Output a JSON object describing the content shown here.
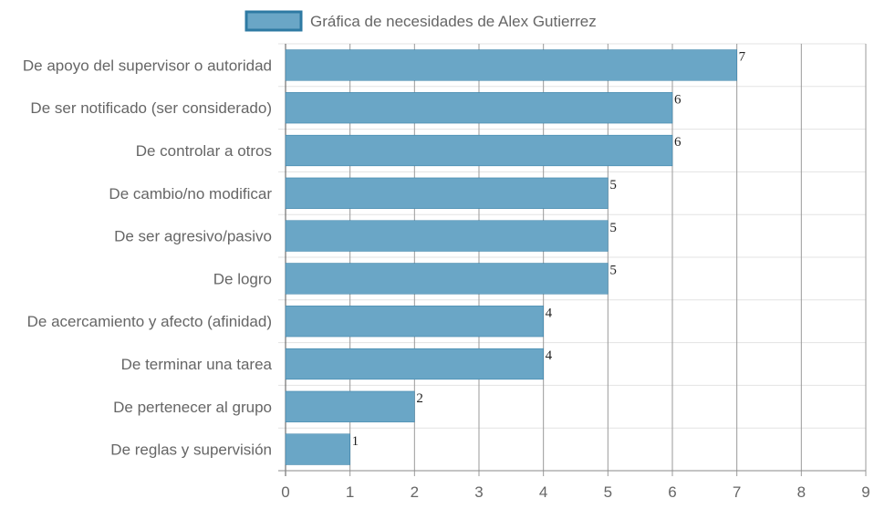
{
  "chart_data": {
    "type": "bar",
    "orientation": "horizontal",
    "categories": [
      "De apoyo del supervisor o autoridad",
      "De ser notificado (ser considerado)",
      "De controlar a otros",
      "De cambio/no modificar",
      "De ser agresivo/pasivo",
      "De logro",
      "De acercamiento y afecto (afinidad)",
      "De terminar una tarea",
      "De pertenecer al grupo",
      "De reglas y supervisión"
    ],
    "series": [
      {
        "name": "Gráfica de necesidades de Alex Gutierrez",
        "values": [
          7,
          6,
          6,
          5,
          5,
          5,
          4,
          4,
          2,
          1
        ],
        "color": "#6aa6c6",
        "border_color": "#2e7aa3"
      }
    ],
    "xlim": [
      0,
      9
    ],
    "x_ticks": [
      "0",
      "1",
      "2",
      "3",
      "4",
      "5",
      "6",
      "7",
      "8",
      "9"
    ],
    "data_labels": [
      "7",
      "6",
      "6",
      "5",
      "5",
      "5",
      "4",
      "4",
      "2",
      "1"
    ],
    "grid": true,
    "legend_position": "top"
  }
}
